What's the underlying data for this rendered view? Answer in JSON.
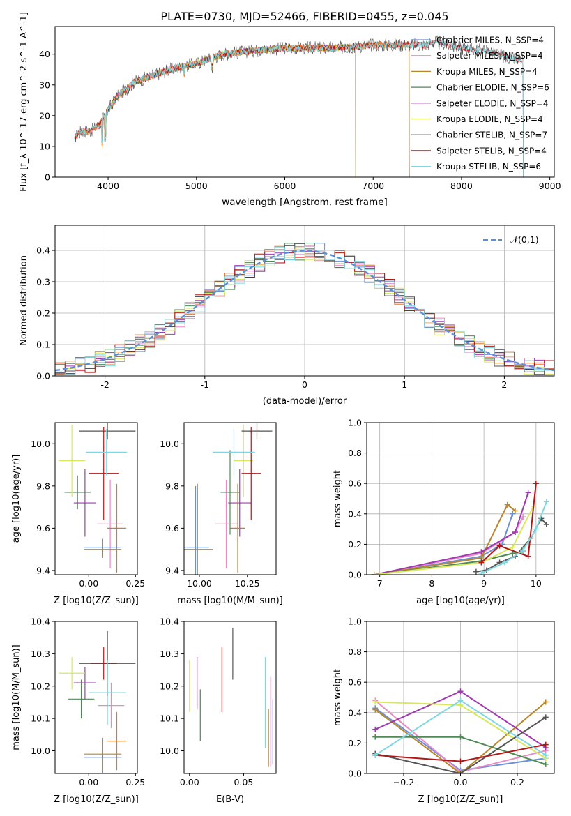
{
  "figure_title": "PLATE=0730, MJD=52466, FIBERID=0455, z=0.045",
  "colors": {
    "Chabrier MILES": "#6b8fd6",
    "Salpeter MILES": "#e88ac6",
    "Kroupa MILES": "#b8862b",
    "Chabrier ELODIE": "#4f8a55",
    "Salpeter ELODIE": "#a03ab0",
    "Kroupa ELODIE": "#d8e85a",
    "Chabrier STELIB": "#555555",
    "Salpeter STELIB": "#b01818",
    "Kroupa STELIB": "#7fd8e0",
    "extra_orange": "#d9782c"
  },
  "chart_data": [
    {
      "id": "spectrum",
      "type": "line",
      "xlabel": "wavelength [Angstrom, rest frame]",
      "ylabel": "Flux [f_λ 10^-17 erg cm^-2 s^-1 A^-1]",
      "xlim": [
        3400,
        9050
      ],
      "ylim": [
        0,
        49
      ],
      "xticks": [
        4000,
        5000,
        6000,
        7000,
        8000,
        9000
      ],
      "yticks": [
        0,
        10,
        20,
        30,
        40
      ],
      "legend_position": "upper-right",
      "legend": [
        {
          "label": "Chabrier MILES, N_SSP=4"
        },
        {
          "label": "Salpeter MILES, N_SSP=4"
        },
        {
          "label": "Kroupa MILES, N_SSP=4"
        },
        {
          "label": "Chabrier ELODIE, N_SSP=6"
        },
        {
          "label": "Salpeter ELODIE, N_SSP=4"
        },
        {
          "label": "Kroupa ELODIE, N_SSP=4"
        },
        {
          "label": "Chabrier STELIB, N_SSP=7"
        },
        {
          "label": "Salpeter STELIB, N_SSP=4"
        },
        {
          "label": "Kroupa STELIB, N_SSP=6"
        }
      ],
      "continuum": {
        "x": [
          3620,
          3700,
          3800,
          3900,
          4000,
          4100,
          4300,
          4500,
          4700,
          5000,
          5300,
          5600,
          6000,
          6300,
          6600,
          7000,
          7400,
          7600,
          7700,
          8000,
          8300,
          8500,
          8650
        ],
        "y": [
          13,
          15,
          15,
          17,
          22,
          26,
          31,
          33,
          35,
          37,
          40,
          41,
          42,
          42,
          42,
          43,
          43,
          43,
          44,
          42,
          41,
          39,
          38
        ]
      },
      "model_ranges": {
        "MILES": [
          3620,
          7410
        ],
        "ELODIE": [
          3900,
          6800
        ],
        "STELIB": [
          3620,
          8700
        ]
      }
    },
    {
      "id": "residual_hist",
      "type": "line",
      "xlabel": "(data-model)/error",
      "ylabel": "Normed distribution",
      "xlim": [
        -2.5,
        2.5
      ],
      "ylim": [
        0,
        0.48
      ],
      "xticks": [
        -2,
        -1,
        0,
        1,
        2
      ],
      "yticks": [
        0.0,
        0.1,
        0.2,
        0.3,
        0.4
      ],
      "grid": true,
      "legend_position": "upper-right",
      "legend_label": "𝒩(0,1)",
      "bin_width": 0.1,
      "description": "step histograms for each of the nine model fits, overplotted on a standard normal curve"
    },
    {
      "id": "age_vs_Z",
      "type": "scatter",
      "xlabel": "Z [log10(Z/Z_sun)]",
      "ylabel": "age [log10(age/yr)]",
      "xlim": [
        -0.18,
        0.26
      ],
      "ylim": [
        9.38,
        10.1
      ],
      "xticks": [
        0.0,
        0.25
      ],
      "yticks": [
        9.4,
        9.6,
        9.8,
        10.0
      ],
      "points": [
        {
          "series": "Chabrier MILES",
          "x": 0.075,
          "xerr": 0.1,
          "y": 9.51,
          "yerr": 0.04
        },
        {
          "series": "Salpeter MILES",
          "x": 0.115,
          "xerr": 0.07,
          "y": 9.62,
          "yerr": 0.21
        },
        {
          "series": "Kroupa MILES",
          "x": 0.075,
          "xerr": 0.1,
          "y": 9.5,
          "yerr": 0.04
        },
        {
          "series": "Chabrier ELODIE",
          "x": -0.06,
          "xerr": 0.07,
          "y": 9.77,
          "yerr": 0.08
        },
        {
          "series": "Salpeter ELODIE",
          "x": -0.02,
          "xerr": 0.06,
          "y": 9.72,
          "yerr": 0.16
        },
        {
          "series": "Kroupa ELODIE",
          "x": -0.09,
          "xerr": 0.07,
          "y": 9.92,
          "yerr": 0.17
        },
        {
          "series": "Chabrier STELIB",
          "x": 0.1,
          "xerr": 0.15,
          "y": 10.06,
          "yerr": 0.04
        },
        {
          "series": "Salpeter STELIB",
          "x": 0.08,
          "xerr": 0.08,
          "y": 9.86,
          "yerr": 0.22
        },
        {
          "series": "Kroupa STELIB",
          "x": 0.095,
          "xerr": 0.11,
          "y": 9.96,
          "yerr": 0.11
        },
        {
          "series": "extra_orange",
          "x": 0.15,
          "xerr": 0.05,
          "y": 9.6,
          "yerr": 0.21
        }
      ]
    },
    {
      "id": "age_vs_mass",
      "type": "scatter",
      "xlabel": "mass [log10(M/M_sun)]",
      "ylabel": "",
      "xlim": [
        9.92,
        10.4
      ],
      "ylim": [
        9.38,
        10.1
      ],
      "xticks": [
        10.0,
        10.25
      ],
      "yticks": [
        9.4,
        9.6,
        9.8,
        10.0
      ],
      "points": [
        {
          "series": "Chabrier MILES",
          "x": 9.98,
          "xerr": 0.07,
          "y": 9.51,
          "yerr": 0.29
        },
        {
          "series": "Salpeter MILES",
          "x": 10.14,
          "xerr": 0.06,
          "y": 9.62,
          "yerr": 0.21
        },
        {
          "series": "Kroupa MILES",
          "x": 9.99,
          "xerr": 0.08,
          "y": 9.5,
          "yerr": 0.31
        },
        {
          "series": "Chabrier ELODIE",
          "x": 10.16,
          "xerr": 0.05,
          "y": 9.77,
          "yerr": 0.2
        },
        {
          "series": "Salpeter ELODIE",
          "x": 10.21,
          "xerr": 0.06,
          "y": 9.72,
          "yerr": 0.16
        },
        {
          "series": "Kroupa ELODIE",
          "x": 10.23,
          "xerr": 0.05,
          "y": 9.92,
          "yerr": 0.17
        },
        {
          "series": "Chabrier STELIB",
          "x": 10.3,
          "xerr": 0.08,
          "y": 10.06,
          "yerr": 0.04
        },
        {
          "series": "Salpeter STELIB",
          "x": 10.27,
          "xerr": 0.05,
          "y": 9.86,
          "yerr": 0.22
        },
        {
          "series": "Kroupa STELIB",
          "x": 10.18,
          "xerr": 0.11,
          "y": 9.96,
          "yerr": 0.11
        },
        {
          "series": "extra_orange",
          "x": 10.2,
          "xerr": 0.04,
          "y": 9.6,
          "yerr": 0.21
        }
      ]
    },
    {
      "id": "weight_vs_age",
      "type": "line",
      "xlabel": "age [log10(age/yr)]",
      "ylabel": "mass weight",
      "xlim": [
        6.75,
        10.35
      ],
      "ylim": [
        0,
        1.0
      ],
      "xticks": [
        7,
        8,
        9,
        10
      ],
      "yticks": [
        0.0,
        0.2,
        0.4,
        0.6,
        0.8,
        1.0
      ],
      "grid": true,
      "series": [
        {
          "name": "Chabrier MILES",
          "x": [
            6.9,
            8.95,
            9.35,
            9.55
          ],
          "y": [
            0.0,
            0.12,
            0.2,
            0.4
          ]
        },
        {
          "name": "Salpeter MILES",
          "x": [
            6.9,
            8.95,
            9.6,
            9.75
          ],
          "y": [
            0.0,
            0.14,
            0.28,
            0.38
          ]
        },
        {
          "name": "Kroupa MILES",
          "x": [
            6.9,
            8.95,
            9.45,
            9.6
          ],
          "y": [
            0.0,
            0.11,
            0.46,
            0.42
          ]
        },
        {
          "name": "Chabrier ELODIE",
          "x": [
            6.9,
            8.95,
            9.55,
            9.75
          ],
          "y": [
            0.0,
            0.09,
            0.14,
            0.15
          ]
        },
        {
          "name": "Salpeter ELODIE",
          "x": [
            6.9,
            8.95,
            9.6,
            9.85
          ],
          "y": [
            0.0,
            0.15,
            0.28,
            0.54
          ]
        },
        {
          "name": "Kroupa ELODIE",
          "x": [
            6.9,
            8.95,
            9.55,
            9.95
          ],
          "y": [
            0.0,
            0.08,
            0.18,
            0.45
          ]
        },
        {
          "name": "Chabrier STELIB",
          "x": [
            8.85,
            9.05,
            9.3,
            9.6,
            9.9,
            10.1,
            10.2
          ],
          "y": [
            0.02,
            0.03,
            0.08,
            0.12,
            0.24,
            0.37,
            0.33
          ]
        },
        {
          "name": "Salpeter STELIB",
          "x": [
            8.95,
            9.3,
            9.85,
            10.0
          ],
          "y": [
            0.08,
            0.19,
            0.12,
            0.6
          ]
        },
        {
          "name": "Kroupa STELIB",
          "x": [
            8.95,
            9.4,
            9.75,
            10.0,
            10.2
          ],
          "y": [
            0.01,
            0.08,
            0.16,
            0.3,
            0.48
          ]
        }
      ]
    },
    {
      "id": "mass_vs_Z",
      "type": "scatter",
      "xlabel": "Z [log10(Z/Z_sun)]",
      "ylabel": "mass [log10(M/M_sun)]",
      "xlim": [
        -0.18,
        0.26
      ],
      "ylim": [
        9.93,
        10.4
      ],
      "xticks": [
        0.0,
        0.25
      ],
      "yticks": [
        10.0,
        10.1,
        10.2,
        10.3,
        10.4
      ],
      "points": [
        {
          "series": "Chabrier MILES",
          "x": 0.075,
          "xerr": 0.1,
          "y": 9.98,
          "yerr": 0.05
        },
        {
          "series": "Salpeter MILES",
          "x": 0.12,
          "xerr": 0.07,
          "y": 10.14,
          "yerr": 0.07
        },
        {
          "series": "Kroupa MILES",
          "x": 0.075,
          "xerr": 0.1,
          "y": 9.99,
          "yerr": 0.05
        },
        {
          "series": "Chabrier ELODIE",
          "x": -0.04,
          "xerr": 0.07,
          "y": 10.16,
          "yerr": 0.06
        },
        {
          "series": "Salpeter ELODIE",
          "x": -0.02,
          "xerr": 0.06,
          "y": 10.21,
          "yerr": 0.05
        },
        {
          "series": "Kroupa ELODIE",
          "x": -0.09,
          "xerr": 0.07,
          "y": 10.24,
          "yerr": 0.05
        },
        {
          "series": "Chabrier STELIB",
          "x": 0.1,
          "xerr": 0.15,
          "y": 10.27,
          "yerr": 0.1
        },
        {
          "series": "Salpeter STELIB",
          "x": 0.08,
          "xerr": 0.07,
          "y": 10.27,
          "yerr": 0.05
        },
        {
          "series": "Kroupa STELIB",
          "x": 0.1,
          "xerr": 0.1,
          "y": 10.18,
          "yerr": 0.1
        },
        {
          "series": "extra_orange",
          "x": 0.15,
          "xerr": 0.05,
          "y": 10.03,
          "yerr": 0.09
        }
      ]
    },
    {
      "id": "mass_vs_ebv",
      "type": "scatter",
      "xlabel": "E(B-V)",
      "ylabel": "",
      "xlim": [
        -0.005,
        0.08
      ],
      "ylim": [
        9.93,
        10.4
      ],
      "xticks": [
        0.0,
        0.05
      ],
      "yticks": [
        10.0,
        10.1,
        10.2,
        10.3,
        10.4
      ],
      "points": [
        {
          "series": "Chabrier MILES",
          "x": 0.077,
          "y": 10.06,
          "yerr": 0.1
        },
        {
          "series": "Salpeter MILES",
          "x": 0.075,
          "y": 10.09,
          "yerr": 0.14
        },
        {
          "series": "Kroupa MILES",
          "x": 0.073,
          "y": 10.04,
          "yerr": 0.09
        },
        {
          "series": "Chabrier ELODIE",
          "x": 0.01,
          "y": 10.11,
          "yerr": 0.08
        },
        {
          "series": "Salpeter ELODIE",
          "x": 0.007,
          "y": 10.21,
          "yerr": 0.08
        },
        {
          "series": "Kroupa ELODIE",
          "x": 0.0,
          "y": 10.2,
          "yerr": 0.08
        },
        {
          "series": "Chabrier STELIB",
          "x": 0.04,
          "y": 10.3,
          "yerr": 0.08
        },
        {
          "series": "Salpeter STELIB",
          "x": 0.03,
          "y": 10.22,
          "yerr": 0.1
        },
        {
          "series": "Kroupa STELIB",
          "x": 0.07,
          "y": 10.15,
          "yerr": 0.14
        }
      ]
    },
    {
      "id": "weight_vs_Z",
      "type": "line",
      "xlabel": "Z [log10(Z/Z_sun)]",
      "ylabel": "mass weight",
      "xlim": [
        -0.33,
        0.33
      ],
      "ylim": [
        0,
        1.0
      ],
      "xticks": [
        -0.2,
        0.0,
        0.2
      ],
      "yticks": [
        0.0,
        0.2,
        0.4,
        0.6,
        0.8,
        1.0
      ],
      "grid": true,
      "series": [
        {
          "name": "Chabrier MILES",
          "x": [
            -0.3,
            0.0,
            0.3
          ],
          "y": [
            0.43,
            0.02,
            0.1
          ]
        },
        {
          "name": "Salpeter MILES",
          "x": [
            -0.3,
            0.0,
            0.3
          ],
          "y": [
            0.48,
            0.01,
            0.15
          ]
        },
        {
          "name": "Kroupa MILES",
          "x": [
            -0.3,
            0.0,
            0.3
          ],
          "y": [
            0.42,
            0.0,
            0.47
          ]
        },
        {
          "name": "Chabrier ELODIE",
          "x": [
            -0.3,
            0.0,
            0.3
          ],
          "y": [
            0.24,
            0.24,
            0.06
          ]
        },
        {
          "name": "Salpeter ELODIE",
          "x": [
            -0.3,
            0.0,
            0.3
          ],
          "y": [
            0.29,
            0.54,
            0.17
          ]
        },
        {
          "name": "Kroupa ELODIE",
          "x": [
            -0.3,
            0.0,
            0.3
          ],
          "y": [
            0.47,
            0.45,
            0.1
          ]
        },
        {
          "name": "Chabrier STELIB",
          "x": [
            -0.3,
            0.0,
            0.3
          ],
          "y": [
            0.13,
            0.0,
            0.37
          ]
        },
        {
          "name": "Salpeter STELIB",
          "x": [
            -0.3,
            0.0,
            0.3
          ],
          "y": [
            0.12,
            0.08,
            0.19
          ]
        },
        {
          "name": "Kroupa STELIB",
          "x": [
            -0.3,
            0.0,
            0.3
          ],
          "y": [
            0.12,
            0.48,
            0.12
          ]
        }
      ]
    }
  ]
}
